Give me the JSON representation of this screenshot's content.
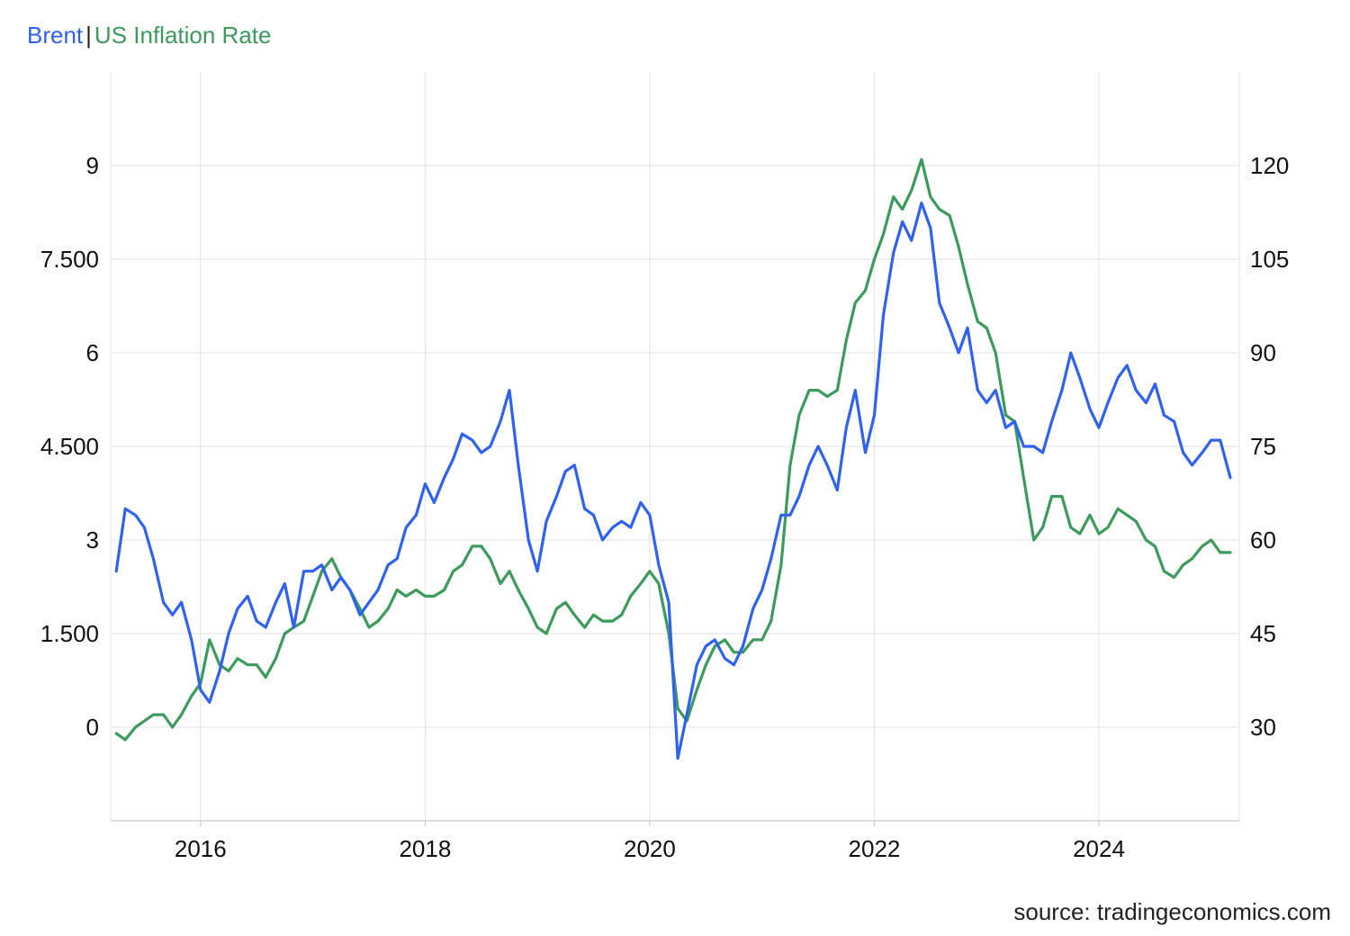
{
  "legend": {
    "brent_label": "Brent",
    "separator": "|",
    "inflation_label": "US Inflation Rate"
  },
  "source": "source: tradingeconomics.com",
  "chart_data": {
    "type": "line",
    "title": "",
    "xlabel": "",
    "x_ticks": [
      "2016",
      "2018",
      "2020",
      "2022",
      "2024"
    ],
    "x_range": [
      2015.2,
      2025.25
    ],
    "grid": true,
    "legend_position": "top-left",
    "left_axis": {
      "ticks": [
        "9",
        "7.500",
        "6",
        "4.500",
        "3",
        "1.500",
        "0"
      ],
      "tick_values": [
        9,
        7.5,
        6,
        4.5,
        3,
        1.5,
        0
      ],
      "range": [
        -1.5,
        10.5
      ]
    },
    "right_axis": {
      "ticks": [
        "120",
        "105",
        "90",
        "75",
        "60",
        "45",
        "30"
      ],
      "tick_values": [
        120,
        105,
        90,
        75,
        60,
        45,
        30
      ],
      "range": [
        15,
        135
      ]
    },
    "series": [
      {
        "name": "US Inflation Rate",
        "axis": "left",
        "color": "#3c9a5c",
        "x": [
          2015.25,
          2015.33,
          2015.42,
          2015.5,
          2015.58,
          2015.67,
          2015.75,
          2015.83,
          2015.92,
          2016.0,
          2016.08,
          2016.17,
          2016.25,
          2016.33,
          2016.42,
          2016.5,
          2016.58,
          2016.67,
          2016.75,
          2016.83,
          2016.92,
          2017.0,
          2017.08,
          2017.17,
          2017.25,
          2017.33,
          2017.42,
          2017.5,
          2017.58,
          2017.67,
          2017.75,
          2017.83,
          2017.92,
          2018.0,
          2018.08,
          2018.17,
          2018.25,
          2018.33,
          2018.42,
          2018.5,
          2018.58,
          2018.67,
          2018.75,
          2018.83,
          2018.92,
          2019.0,
          2019.08,
          2019.17,
          2019.25,
          2019.33,
          2019.42,
          2019.5,
          2019.58,
          2019.67,
          2019.75,
          2019.83,
          2019.92,
          2020.0,
          2020.08,
          2020.17,
          2020.25,
          2020.33,
          2020.42,
          2020.5,
          2020.58,
          2020.67,
          2020.75,
          2020.83,
          2020.92,
          2021.0,
          2021.08,
          2021.17,
          2021.25,
          2021.33,
          2021.42,
          2021.5,
          2021.58,
          2021.67,
          2021.75,
          2021.83,
          2021.92,
          2022.0,
          2022.08,
          2022.17,
          2022.25,
          2022.33,
          2022.42,
          2022.5,
          2022.58,
          2022.67,
          2022.75,
          2022.83,
          2022.92,
          2023.0,
          2023.08,
          2023.17,
          2023.25,
          2023.33,
          2023.42,
          2023.5,
          2023.58,
          2023.67,
          2023.75,
          2023.83,
          2023.92,
          2024.0,
          2024.08,
          2024.17,
          2024.25,
          2024.33,
          2024.42,
          2024.5,
          2024.58,
          2024.67,
          2024.75,
          2024.83,
          2024.92,
          2025.0,
          2025.08,
          2025.17
        ],
        "values": [
          -0.1,
          -0.2,
          0.0,
          0.1,
          0.2,
          0.2,
          0.0,
          0.2,
          0.5,
          0.7,
          1.4,
          1.0,
          0.9,
          1.1,
          1.0,
          1.0,
          0.8,
          1.1,
          1.5,
          1.6,
          1.7,
          2.1,
          2.5,
          2.7,
          2.4,
          2.2,
          1.9,
          1.6,
          1.7,
          1.9,
          2.2,
          2.1,
          2.2,
          2.1,
          2.1,
          2.2,
          2.5,
          2.6,
          2.9,
          2.9,
          2.7,
          2.3,
          2.5,
          2.2,
          1.9,
          1.6,
          1.5,
          1.9,
          2.0,
          1.8,
          1.6,
          1.8,
          1.7,
          1.7,
          1.8,
          2.1,
          2.3,
          2.5,
          2.3,
          1.5,
          0.3,
          0.1,
          0.6,
          1.0,
          1.3,
          1.4,
          1.2,
          1.2,
          1.4,
          1.4,
          1.7,
          2.6,
          4.2,
          5.0,
          5.4,
          5.4,
          5.3,
          5.4,
          6.2,
          6.8,
          7.0,
          7.5,
          7.9,
          8.5,
          8.3,
          8.6,
          9.1,
          8.5,
          8.3,
          8.2,
          7.7,
          7.1,
          6.5,
          6.4,
          6.0,
          5.0,
          4.9,
          4.0,
          3.0,
          3.2,
          3.7,
          3.7,
          3.2,
          3.1,
          3.4,
          3.1,
          3.2,
          3.5,
          3.4,
          3.3,
          3.0,
          2.9,
          2.5,
          2.4,
          2.6,
          2.7,
          2.9,
          3.0,
          2.8,
          2.8
        ]
      },
      {
        "name": "Brent",
        "axis": "right",
        "color": "#2f62f0",
        "x": [
          2015.25,
          2015.33,
          2015.42,
          2015.5,
          2015.58,
          2015.67,
          2015.75,
          2015.83,
          2015.92,
          2016.0,
          2016.08,
          2016.17,
          2016.25,
          2016.33,
          2016.42,
          2016.5,
          2016.58,
          2016.67,
          2016.75,
          2016.83,
          2016.92,
          2017.0,
          2017.08,
          2017.17,
          2017.25,
          2017.33,
          2017.42,
          2017.5,
          2017.58,
          2017.67,
          2017.75,
          2017.83,
          2017.92,
          2018.0,
          2018.08,
          2018.17,
          2018.25,
          2018.33,
          2018.42,
          2018.5,
          2018.58,
          2018.67,
          2018.75,
          2018.83,
          2018.92,
          2019.0,
          2019.08,
          2019.17,
          2019.25,
          2019.33,
          2019.42,
          2019.5,
          2019.58,
          2019.67,
          2019.75,
          2019.83,
          2019.92,
          2020.0,
          2020.08,
          2020.17,
          2020.25,
          2020.33,
          2020.42,
          2020.5,
          2020.58,
          2020.67,
          2020.75,
          2020.83,
          2020.92,
          2021.0,
          2021.08,
          2021.17,
          2021.25,
          2021.33,
          2021.42,
          2021.5,
          2021.58,
          2021.67,
          2021.75,
          2021.83,
          2021.92,
          2022.0,
          2022.08,
          2022.17,
          2022.25,
          2022.33,
          2022.42,
          2022.5,
          2022.58,
          2022.67,
          2022.75,
          2022.83,
          2022.92,
          2023.0,
          2023.08,
          2023.17,
          2023.25,
          2023.33,
          2023.42,
          2023.5,
          2023.58,
          2023.67,
          2023.75,
          2023.83,
          2023.92,
          2024.0,
          2024.08,
          2024.17,
          2024.25,
          2024.33,
          2024.42,
          2024.5,
          2024.58,
          2024.67,
          2024.75,
          2024.83,
          2024.92,
          2025.0,
          2025.08,
          2025.17
        ],
        "values": [
          55,
          65,
          64,
          62,
          57,
          50,
          48,
          50,
          44,
          36,
          34,
          39,
          45,
          49,
          51,
          47,
          46,
          50,
          53,
          46,
          55,
          55,
          56,
          52,
          54,
          52,
          48,
          50,
          52,
          56,
          57,
          62,
          64,
          69,
          66,
          70,
          73,
          77,
          76,
          74,
          75,
          79,
          84,
          72,
          60,
          55,
          63,
          67,
          71,
          72,
          65,
          64,
          60,
          62,
          63,
          62,
          66,
          64,
          56,
          50,
          25,
          32,
          40,
          43,
          44,
          41,
          40,
          43,
          49,
          52,
          57,
          64,
          64,
          67,
          72,
          75,
          72,
          68,
          78,
          84,
          74,
          80,
          96,
          106,
          111,
          108,
          114,
          110,
          98,
          94,
          90,
          94,
          84,
          82,
          84,
          78,
          79,
          75,
          75,
          74,
          79,
          84,
          90,
          86,
          81,
          78,
          82,
          86,
          88,
          84,
          82,
          85,
          80,
          79,
          74,
          72,
          74,
          76,
          76,
          70
        ]
      }
    ]
  }
}
